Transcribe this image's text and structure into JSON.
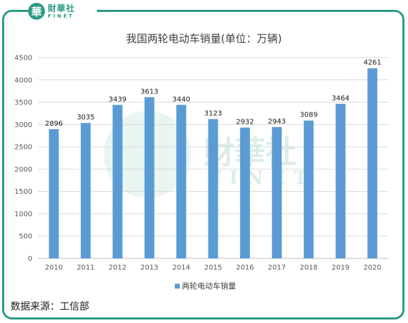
{
  "logo": {
    "mark": "華",
    "cn": "財華社",
    "en": "FINET"
  },
  "colors": {
    "frame": "#2e9a86",
    "bar": "#5b9bd5",
    "grid": "#d9d9d9"
  },
  "source_note": "数据来源：工信部",
  "chart_data": {
    "type": "bar",
    "title": "我国两轮电动车销量(单位：万辆)",
    "categories": [
      "2010",
      "2011",
      "2012",
      "2013",
      "2014",
      "2015",
      "2016",
      "2017",
      "2018",
      "2019",
      "2020"
    ],
    "series": [
      {
        "name": "两轮电动车销量",
        "values": [
          2896,
          3035,
          3439,
          3613,
          3440,
          3123,
          2932,
          2943,
          3089,
          3464,
          4261
        ]
      }
    ],
    "ylim": [
      0,
      4500
    ],
    "yticks": [
      "0",
      "500",
      "1000",
      "1500",
      "2000",
      "2500",
      "3000",
      "3500",
      "4000",
      "4500"
    ],
    "grid": true,
    "legend_position": "bottom"
  }
}
